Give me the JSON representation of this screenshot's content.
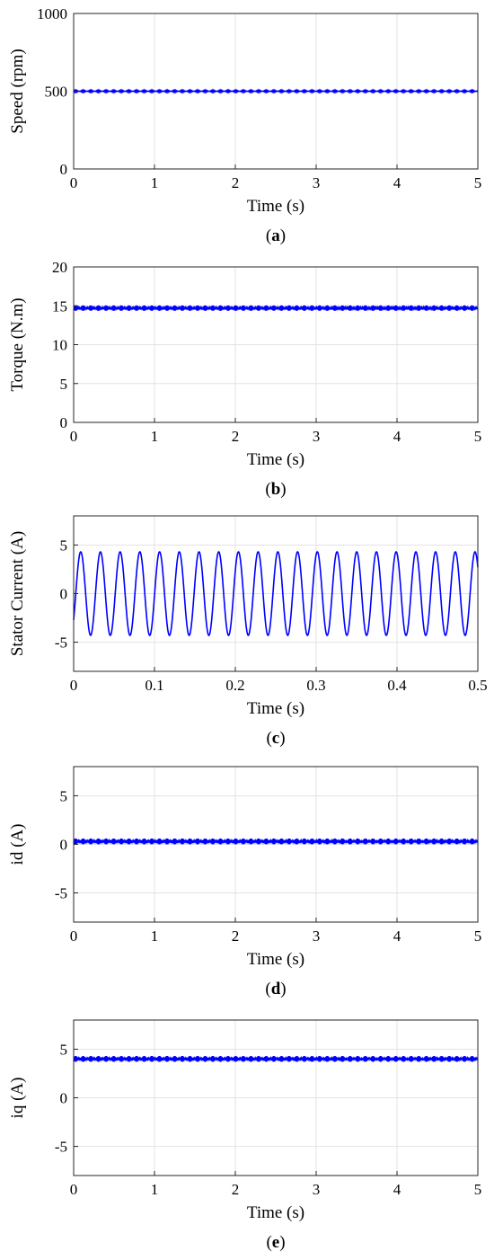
{
  "chart_data": [
    {
      "type": "line",
      "ylabel": "Speed (rpm)",
      "xlabel": "Time (s)",
      "caption_letter": "a",
      "xlim": [
        0,
        5
      ],
      "ylim": [
        0,
        1000
      ],
      "xticks": [
        0,
        1,
        2,
        3,
        4,
        5
      ],
      "yticks": [
        0,
        500,
        1000
      ],
      "grid": true,
      "series": [
        {
          "color": "#0000ff",
          "signal": "constant_ripple",
          "level": 500,
          "ripple": 5,
          "period": 0.05,
          "x": [
            0,
            5
          ]
        }
      ]
    },
    {
      "type": "line",
      "ylabel": "Torque (N.m)",
      "xlabel": "Time (s)",
      "caption_letter": "b",
      "xlim": [
        0,
        5
      ],
      "ylim": [
        0,
        20
      ],
      "xticks": [
        0,
        1,
        2,
        3,
        4,
        5
      ],
      "yticks": [
        0,
        5,
        10,
        15,
        20
      ],
      "grid": true,
      "series": [
        {
          "color": "#0000ff",
          "signal": "constant_ripple",
          "level": 14.7,
          "ripple": 0.35,
          "period": 0.02,
          "x": [
            0,
            5
          ]
        }
      ]
    },
    {
      "type": "line",
      "ylabel": "Stator Current (A)",
      "xlabel": "Time (s)",
      "caption_letter": "c",
      "xlim": [
        0,
        0.5
      ],
      "ylim": [
        -8,
        8
      ],
      "xticks": [
        0,
        0.1,
        0.2,
        0.3,
        0.4,
        0.5
      ],
      "yticks": [
        -5,
        0,
        5
      ],
      "grid": true,
      "series": [
        {
          "color": "#0000ff",
          "signal": "sine",
          "amplitude": 4.3,
          "frequency_hz": 41,
          "initial_value": -2.7,
          "x": [
            0,
            0.5
          ]
        }
      ]
    },
    {
      "type": "line",
      "ylabel": "id (A)",
      "xlabel": "Time (s)",
      "caption_letter": "d",
      "xlim": [
        0,
        5
      ],
      "ylim": [
        -8,
        8
      ],
      "xticks": [
        0,
        1,
        2,
        3,
        4,
        5
      ],
      "yticks": [
        -5,
        0,
        5
      ],
      "grid": true,
      "series": [
        {
          "color": "#0000ff",
          "signal": "constant_ripple",
          "level": 0.3,
          "ripple": 0.3,
          "period": 0.02,
          "x": [
            0,
            5
          ]
        }
      ]
    },
    {
      "type": "line",
      "ylabel": "iq (A)",
      "xlabel": "Time (s)",
      "caption_letter": "e",
      "xlim": [
        0,
        5
      ],
      "ylim": [
        -8,
        8
      ],
      "xticks": [
        0,
        1,
        2,
        3,
        4,
        5
      ],
      "yticks": [
        -5,
        0,
        5
      ],
      "grid": true,
      "series": [
        {
          "color": "#0000ff",
          "signal": "constant_ripple",
          "level": 4,
          "ripple": 0.3,
          "period": 0.02,
          "x": [
            0,
            5
          ]
        }
      ]
    }
  ]
}
